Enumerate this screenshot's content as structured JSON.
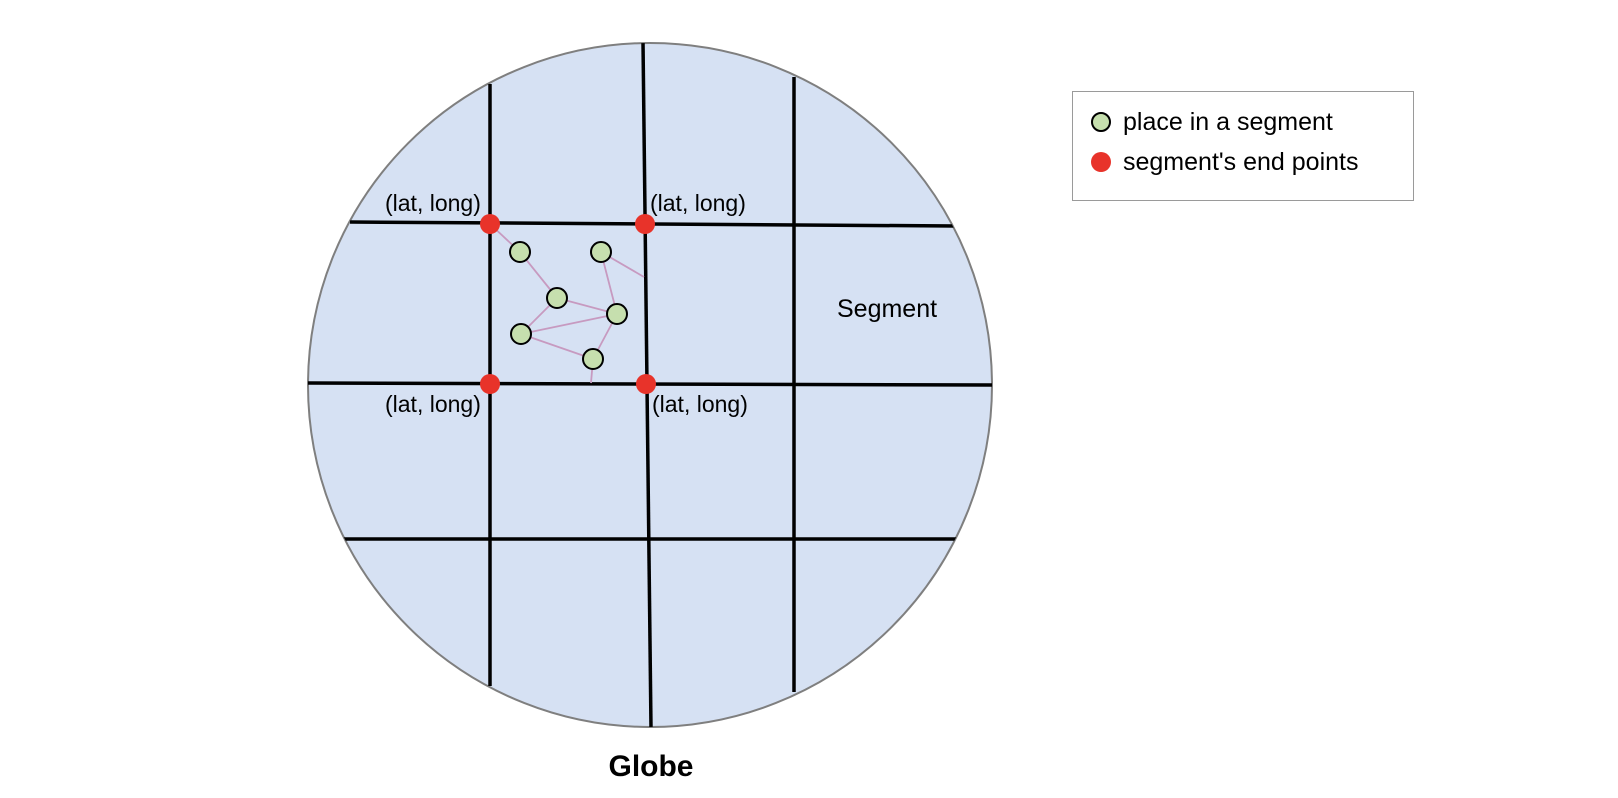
{
  "diagram": {
    "segment_label": "Segment",
    "globe_label": "Globe",
    "corner_labels": {
      "top_left": "(lat, long)",
      "top_right": "(lat, long)",
      "bottom_left": "(lat, long)",
      "bottom_right": "(lat, long)"
    }
  },
  "legend": {
    "place_label": "place in a segment",
    "endpoint_label": "segment's end points"
  },
  "colors": {
    "globe_fill": "#d6e1f3",
    "globe_stroke": "#7f7f7f",
    "grid_line": "#000000",
    "place_fill": "#c6dfae",
    "endpoint_fill": "#e8332a",
    "connector": "#c79ac0"
  }
}
